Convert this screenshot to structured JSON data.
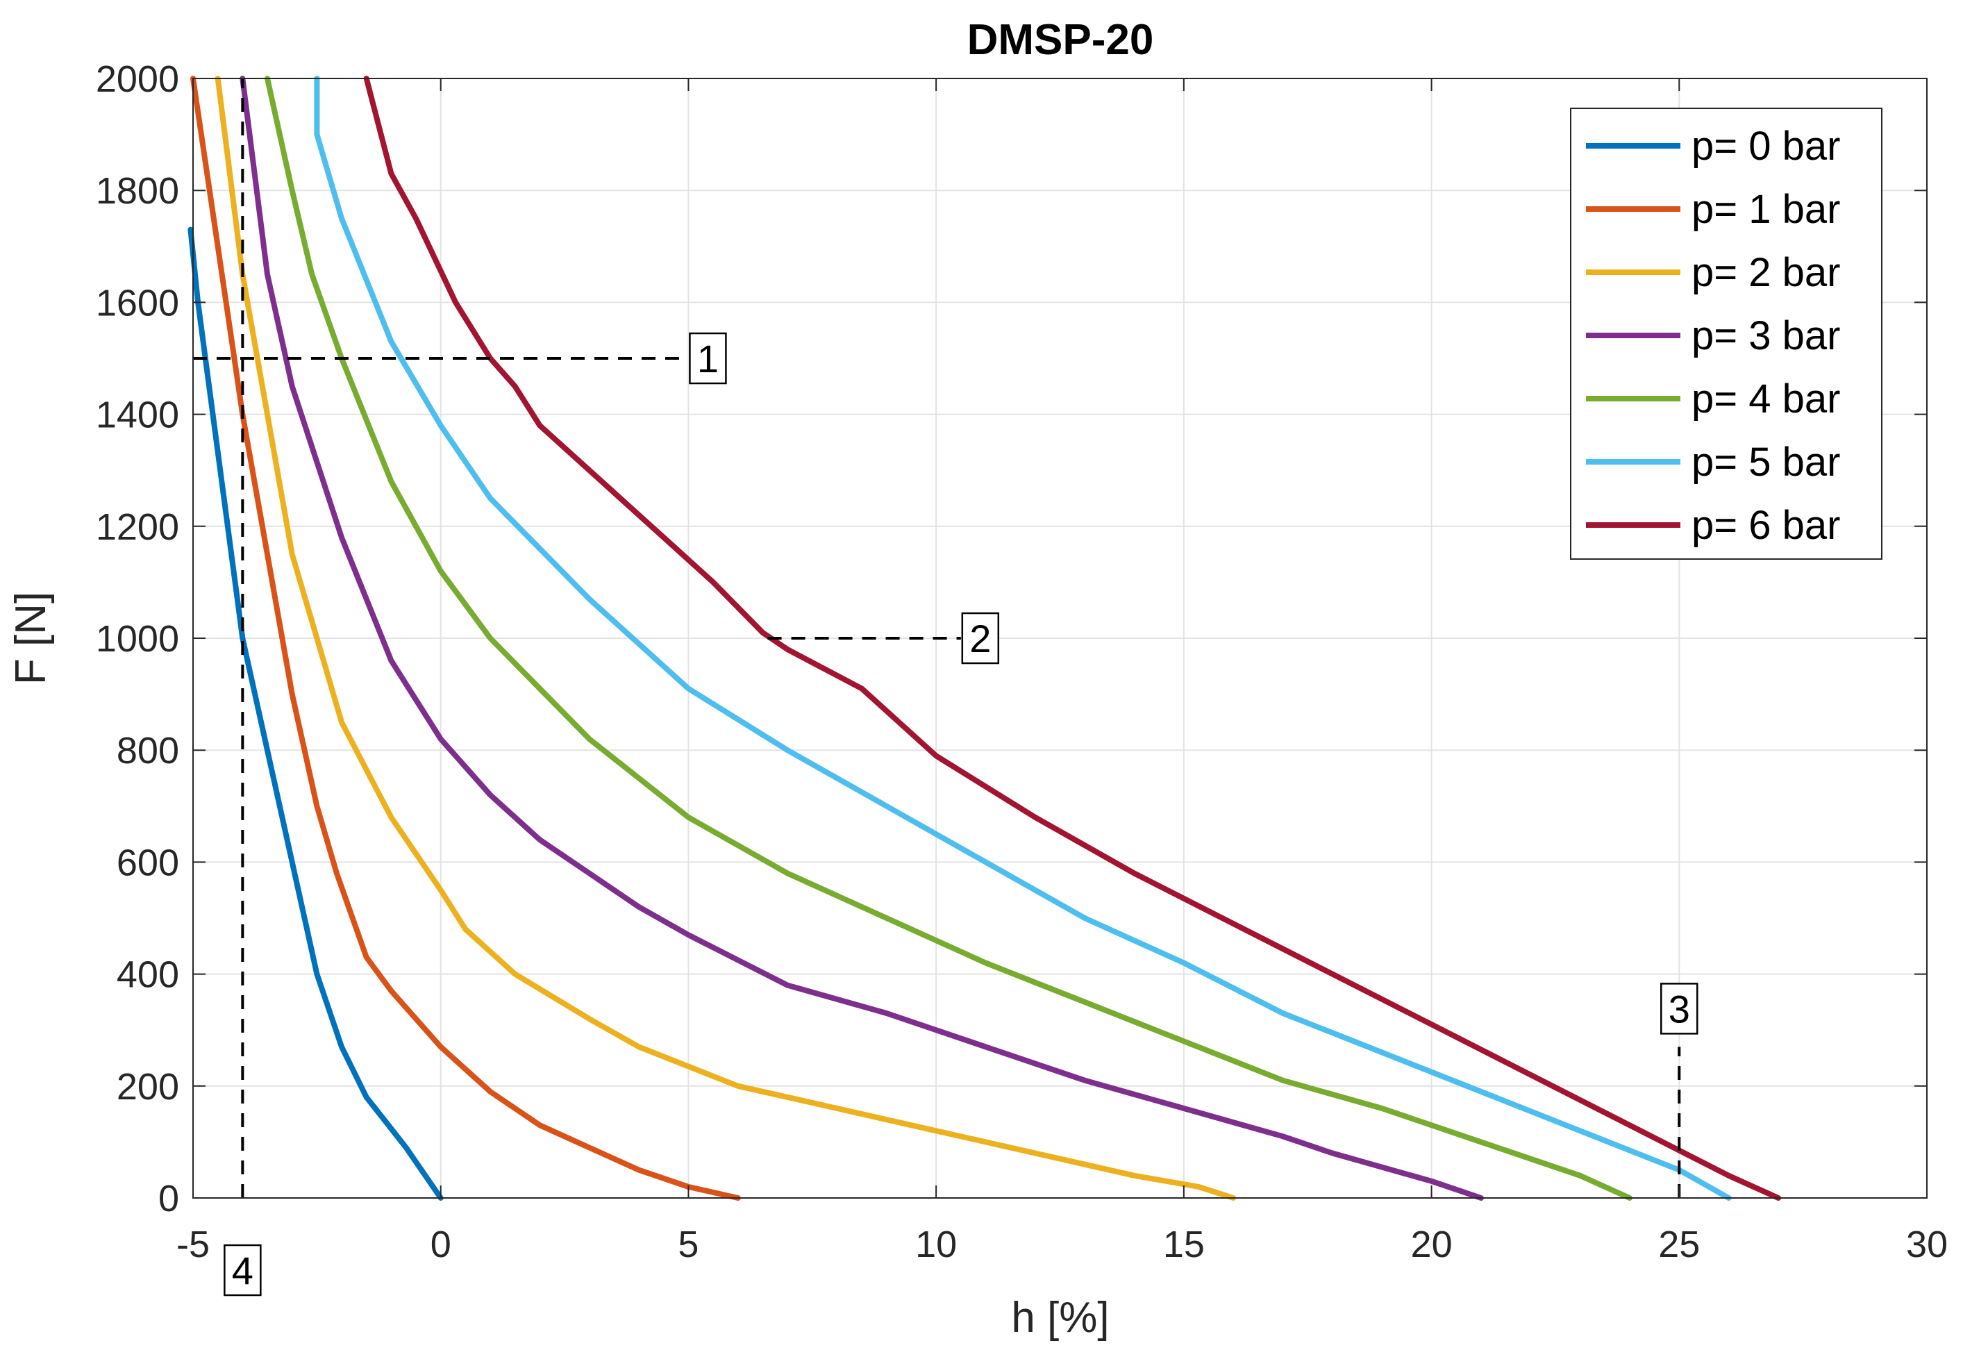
{
  "chart_data": {
    "type": "line",
    "title": "DMSP-20",
    "xlabel": "h [%]",
    "ylabel": "F [N]",
    "xlim": [
      -5,
      30
    ],
    "ylim": [
      0,
      2000
    ],
    "x_ticks": [
      -5,
      0,
      5,
      10,
      15,
      20,
      25,
      30
    ],
    "y_ticks": [
      0,
      200,
      400,
      600,
      800,
      1000,
      1200,
      1400,
      1600,
      1800,
      2000
    ],
    "x_tick_labels": [
      "-5",
      "0",
      "5",
      "10",
      "15",
      "20",
      "25",
      "30"
    ],
    "y_tick_labels": [
      "0",
      "200",
      "400",
      "600",
      "800",
      "1000",
      "1200",
      "1400",
      "1600",
      "1800",
      "2000"
    ],
    "grid": true,
    "legend_position": "top-right",
    "series": [
      {
        "name": "p= 0 bar",
        "color": "#0072BD",
        "points": [
          [
            0,
            0
          ],
          [
            -0.7,
            90
          ],
          [
            -1.5,
            180
          ],
          [
            -2.0,
            270
          ],
          [
            -2.5,
            400
          ],
          [
            -3.0,
            600
          ],
          [
            -3.5,
            800
          ],
          [
            -4.0,
            1000
          ],
          [
            -4.3,
            1200
          ],
          [
            -4.6,
            1400
          ],
          [
            -4.9,
            1600
          ],
          [
            -5.05,
            1730
          ]
        ]
      },
      {
        "name": "p= 1 bar",
        "color": "#D95319",
        "points": [
          [
            6,
            0
          ],
          [
            5,
            20
          ],
          [
            4,
            50
          ],
          [
            3,
            90
          ],
          [
            2,
            130
          ],
          [
            1,
            190
          ],
          [
            0,
            270
          ],
          [
            -1,
            370
          ],
          [
            -1.5,
            430
          ],
          [
            -2.1,
            580
          ],
          [
            -2.5,
            700
          ],
          [
            -3.0,
            900
          ],
          [
            -3.5,
            1150
          ],
          [
            -4.0,
            1400
          ],
          [
            -4.5,
            1700
          ],
          [
            -5.0,
            2000
          ]
        ]
      },
      {
        "name": "p= 2 bar",
        "color": "#EDB120",
        "points": [
          [
            16,
            0
          ],
          [
            15.3,
            20
          ],
          [
            14,
            40
          ],
          [
            12,
            80
          ],
          [
            10,
            120
          ],
          [
            8,
            160
          ],
          [
            6,
            200
          ],
          [
            4,
            270
          ],
          [
            3,
            320
          ],
          [
            1.5,
            400
          ],
          [
            0.5,
            480
          ],
          [
            0,
            550
          ],
          [
            -1,
            680
          ],
          [
            -2,
            850
          ],
          [
            -2.5,
            1000
          ],
          [
            -3,
            1150
          ],
          [
            -3.5,
            1400
          ],
          [
            -4,
            1650
          ],
          [
            -4.5,
            2000
          ]
        ]
      },
      {
        "name": "p= 3 bar",
        "color": "#7E2F8E",
        "points": [
          [
            21,
            0
          ],
          [
            20,
            30
          ],
          [
            18,
            80
          ],
          [
            17,
            110
          ],
          [
            15,
            160
          ],
          [
            13,
            210
          ],
          [
            11,
            270
          ],
          [
            9,
            330
          ],
          [
            7,
            380
          ],
          [
            5,
            470
          ],
          [
            4,
            520
          ],
          [
            3,
            580
          ],
          [
            2,
            640
          ],
          [
            1,
            720
          ],
          [
            0,
            820
          ],
          [
            -1,
            960
          ],
          [
            -2,
            1180
          ],
          [
            -3,
            1450
          ],
          [
            -3.5,
            1650
          ],
          [
            -4,
            2000
          ]
        ]
      },
      {
        "name": "p= 4 bar",
        "color": "#77AC30",
        "points": [
          [
            24,
            0
          ],
          [
            23,
            40
          ],
          [
            21,
            100
          ],
          [
            19,
            160
          ],
          [
            17,
            210
          ],
          [
            15,
            280
          ],
          [
            13,
            350
          ],
          [
            11,
            420
          ],
          [
            9,
            500
          ],
          [
            7,
            580
          ],
          [
            5,
            680
          ],
          [
            3,
            820
          ],
          [
            1,
            1000
          ],
          [
            0,
            1120
          ],
          [
            -1,
            1280
          ],
          [
            -2,
            1500
          ],
          [
            -2.6,
            1650
          ],
          [
            -3,
            1800
          ],
          [
            -3.5,
            2000
          ]
        ]
      },
      {
        "name": "p= 5 bar",
        "color": "#4DBEEE",
        "points": [
          [
            26,
            0
          ],
          [
            25,
            50
          ],
          [
            23,
            120
          ],
          [
            21,
            190
          ],
          [
            19,
            260
          ],
          [
            17,
            330
          ],
          [
            15,
            420
          ],
          [
            13,
            500
          ],
          [
            11,
            600
          ],
          [
            9,
            700
          ],
          [
            7,
            800
          ],
          [
            5,
            910
          ],
          [
            3,
            1070
          ],
          [
            1,
            1250
          ],
          [
            0,
            1380
          ],
          [
            -1,
            1530
          ],
          [
            -2,
            1750
          ],
          [
            -2.5,
            1900
          ],
          [
            -2.5,
            2000
          ]
        ]
      },
      {
        "name": "p= 6 bar",
        "color": "#A2142F",
        "points": [
          [
            27,
            0
          ],
          [
            26,
            40
          ],
          [
            24,
            130
          ],
          [
            22,
            220
          ],
          [
            20,
            310
          ],
          [
            18,
            400
          ],
          [
            16,
            490
          ],
          [
            14,
            580
          ],
          [
            12,
            680
          ],
          [
            10,
            790
          ],
          [
            8.5,
            910
          ],
          [
            7,
            980
          ],
          [
            6.5,
            1010
          ],
          [
            5.5,
            1100
          ],
          [
            4.5,
            1180
          ],
          [
            3.5,
            1260
          ],
          [
            2,
            1380
          ],
          [
            1.5,
            1450
          ],
          [
            1,
            1500
          ],
          [
            0.3,
            1600
          ],
          [
            -0.5,
            1750
          ],
          [
            -1,
            1830
          ],
          [
            -1.5,
            2000
          ]
        ]
      }
    ],
    "annotations": [
      {
        "label": "1",
        "guide_x": [
          -5,
          5
        ],
        "guide_y": [
          1500,
          1500
        ]
      },
      {
        "label": "2",
        "guide_x": [
          6.6,
          10.5
        ],
        "guide_y": [
          1000,
          1000
        ]
      },
      {
        "label": "3",
        "guide_x": [
          25,
          25
        ],
        "guide_y": [
          0,
          270
        ]
      },
      {
        "label": "4",
        "guide_x": [
          -4,
          -4
        ],
        "guide_y": [
          0,
          2000
        ]
      }
    ]
  }
}
